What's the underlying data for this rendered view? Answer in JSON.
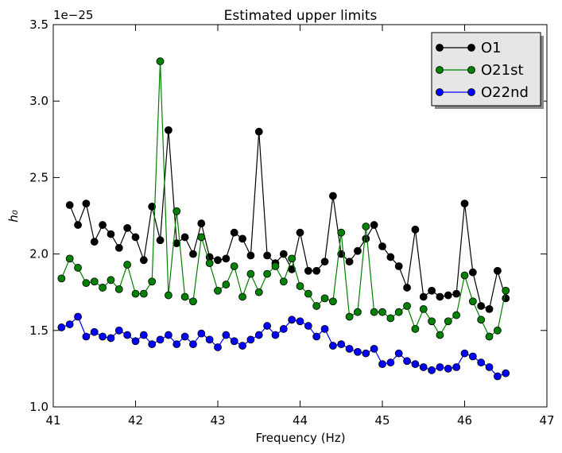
{
  "chart_data": {
    "type": "line",
    "title": "Estimated upper limits",
    "xlabel": "Frequency (Hz)",
    "ylabel": "h₀",
    "y_offset_label": "1e−25",
    "x": [
      41.1,
      41.2,
      41.3,
      41.4,
      41.5,
      41.6,
      41.7,
      41.8,
      41.9,
      42.0,
      42.1,
      42.2,
      42.3,
      42.4,
      42.5,
      42.6,
      42.7,
      42.8,
      42.9,
      43.0,
      43.1,
      43.2,
      43.3,
      43.4,
      43.5,
      43.6,
      43.7,
      43.8,
      43.9,
      44.0,
      44.1,
      44.2,
      44.3,
      44.4,
      44.5,
      44.6,
      44.7,
      44.8,
      44.9,
      45.0,
      45.1,
      45.2,
      45.3,
      45.4,
      45.5,
      45.6,
      45.7,
      45.8,
      45.9,
      46.0,
      46.1,
      46.2,
      46.3,
      46.4,
      46.5
    ],
    "series": [
      {
        "name": "O1",
        "color": "#000000",
        "values": [
          null,
          2.32,
          2.19,
          2.33,
          2.08,
          2.19,
          2.13,
          2.04,
          2.17,
          2.11,
          1.96,
          2.31,
          2.09,
          2.81,
          2.07,
          2.11,
          2.0,
          2.2,
          1.98,
          1.96,
          1.97,
          2.14,
          2.1,
          1.99,
          2.8,
          1.99,
          1.94,
          2.0,
          1.9,
          2.14,
          1.89,
          1.89,
          1.95,
          2.38,
          2.0,
          1.95,
          2.02,
          2.1,
          2.19,
          2.05,
          1.98,
          1.92,
          1.78,
          2.16,
          1.72,
          1.76,
          1.72,
          1.73,
          1.74,
          2.33,
          1.88,
          1.66,
          1.64,
          1.89,
          1.71
        ]
      },
      {
        "name": "O21st",
        "color": "#008000",
        "values": [
          1.84,
          1.97,
          1.91,
          1.81,
          1.82,
          1.78,
          1.83,
          1.77,
          1.93,
          1.74,
          1.74,
          1.82,
          3.26,
          1.73,
          2.28,
          1.72,
          1.69,
          2.11,
          1.94,
          1.76,
          1.8,
          1.92,
          1.72,
          1.87,
          1.75,
          1.87,
          1.92,
          1.82,
          1.97,
          1.79,
          1.74,
          1.66,
          1.71,
          1.69,
          2.14,
          1.59,
          1.62,
          2.18,
          1.62,
          1.62,
          1.58,
          1.62,
          1.66,
          1.51,
          1.64,
          1.56,
          1.47,
          1.56,
          1.6,
          1.86,
          1.69,
          1.57,
          1.46,
          1.5,
          1.76
        ]
      },
      {
        "name": "O22nd",
        "color": "#0000ff",
        "values": [
          1.52,
          1.54,
          1.59,
          1.46,
          1.49,
          1.46,
          1.45,
          1.5,
          1.47,
          1.43,
          1.47,
          1.41,
          1.44,
          1.47,
          1.41,
          1.46,
          1.41,
          1.48,
          1.44,
          1.39,
          1.47,
          1.43,
          1.4,
          1.44,
          1.47,
          1.53,
          1.47,
          1.51,
          1.57,
          1.56,
          1.53,
          1.46,
          1.51,
          1.4,
          1.41,
          1.38,
          1.36,
          1.35,
          1.38,
          1.28,
          1.29,
          1.35,
          1.3,
          1.28,
          1.26,
          1.24,
          1.26,
          1.25,
          1.26,
          1.35,
          1.33,
          1.29,
          1.26,
          1.2,
          1.22
        ]
      }
    ],
    "xlim": [
      41,
      47
    ],
    "xticks": [
      41,
      42,
      43,
      44,
      45,
      46,
      47
    ],
    "ylim": [
      1.0,
      3.5
    ],
    "yticks": [
      {
        "value": 1.0,
        "label": "1.0"
      },
      {
        "value": 1.5,
        "label": "1.5"
      },
      {
        "value": 2.0,
        "label": "2.0"
      },
      {
        "value": 2.5,
        "label": "2.5"
      },
      {
        "value": 3.0,
        "label": "3.0"
      },
      {
        "value": 3.5,
        "label": "3.5"
      }
    ],
    "legend": "upper right",
    "grid": false
  }
}
